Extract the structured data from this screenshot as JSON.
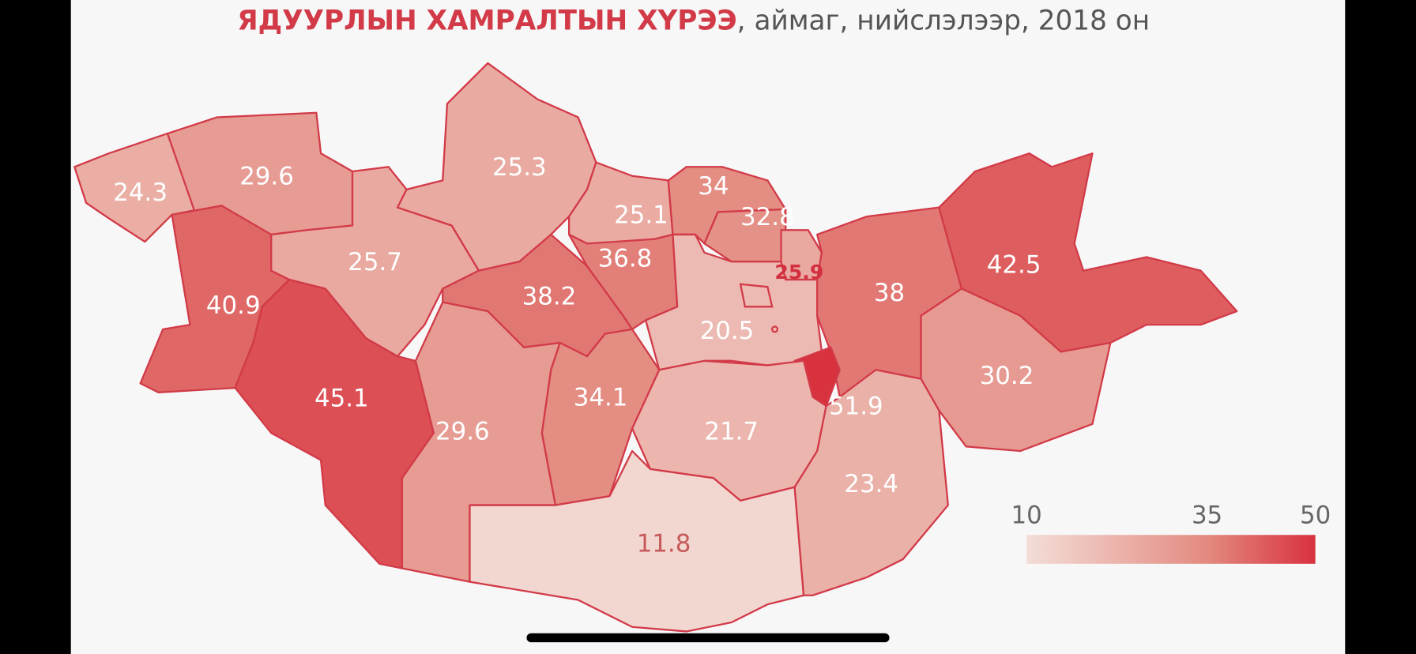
{
  "chart_data": {
    "type": "choropleth",
    "title": "ЯДУУРЛЫН ХАМРАЛТЫН ХҮРЭЭ",
    "subtitle": ", аймаг, нийслэлээр, 2018 он",
    "values": [
      24.3,
      29.6,
      40.9,
      25.7,
      45.1,
      25.3,
      25.1,
      34.0,
      32.8,
      38.2,
      36.8,
      20.5,
      25.9,
      38.0,
      42.5,
      30.2,
      51.9,
      29.6,
      34.1,
      21.7,
      11.8,
      23.4
    ],
    "colorbar": {
      "ticks": [
        10,
        35,
        50
      ],
      "colors": [
        "#f3ddd7",
        "#e38a80",
        "#d8323f"
      ]
    },
    "border_color": "#d23a48"
  }
}
